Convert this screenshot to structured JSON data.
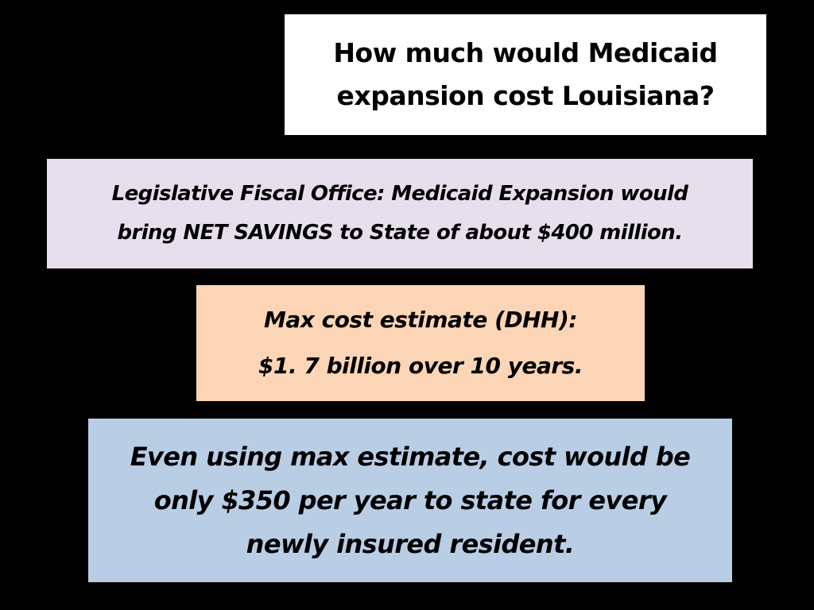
{
  "slide": {
    "title": {
      "line1": "How much would Medicaid",
      "line2": "expansion cost Louisiana?"
    },
    "lfo_note": {
      "line1": "Legislative Fiscal Office: Medicaid Expansion would",
      "line2": "bring NET SAVINGS to State of about $400 million."
    },
    "dhh_estimate": {
      "line1": "Max cost estimate (DHH):",
      "line2": "$1. 7 billion over 10 years."
    },
    "conclusion": {
      "line1": "Even using max estimate, cost would be",
      "line2": "only $350 per year to state for every",
      "line3": "newly insured resident."
    }
  },
  "colors": {
    "background": "#000000",
    "title_box": "#ffffff",
    "lfo_box": "#e6e0ec",
    "dhh_box": "#fbd5b5",
    "conclusion_box": "#b9cde5"
  }
}
